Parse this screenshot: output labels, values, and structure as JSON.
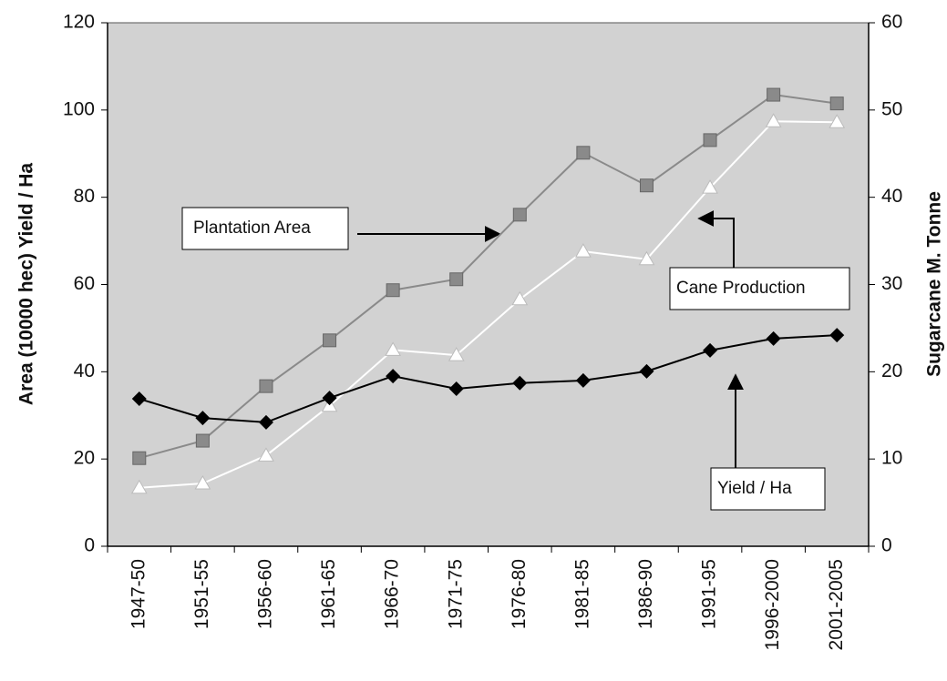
{
  "chart_data": {
    "type": "line",
    "categories": [
      "1947-50",
      "1951-55",
      "1956-60",
      "1961-65",
      "1966-70",
      "1971-75",
      "1976-80",
      "1981-85",
      "1986-90",
      "1991-95",
      "1996-2000",
      "2001-2005"
    ],
    "y_label": "Area (10000 hec)  Yield / Ha",
    "y2_label": "Sugarcane M. Tonne",
    "ylim": [
      0,
      120
    ],
    "yticks": [
      0,
      20,
      40,
      60,
      80,
      100,
      120
    ],
    "y2lim": [
      0,
      60
    ],
    "y2ticks": [
      0,
      10,
      20,
      30,
      40,
      50,
      60
    ],
    "grid": false,
    "series": [
      {
        "name": "Plantation Area",
        "color": "#8a8a8a",
        "marker": "square",
        "values": [
          20.2,
          24.2,
          36.7,
          47.2,
          58.7,
          61.2,
          76,
          90.2,
          82.7,
          93.1,
          103.5,
          101.5
        ]
      },
      {
        "name": "Cane Production",
        "color": "#ffffff",
        "marker": "triangle",
        "axis": "y2",
        "values": [
          6.7,
          7.2,
          10.4,
          16.1,
          22.5,
          21.9,
          28.3,
          33.8,
          32.9,
          41.1,
          48.7,
          48.6
        ]
      },
      {
        "name": "Yield / Ha",
        "color": "#000000",
        "marker": "diamond",
        "values": [
          33.8,
          29.4,
          28.4,
          34,
          39,
          36.1,
          37.4,
          38,
          40.1,
          44.9,
          47.6,
          48.4
        ]
      }
    ]
  }
}
